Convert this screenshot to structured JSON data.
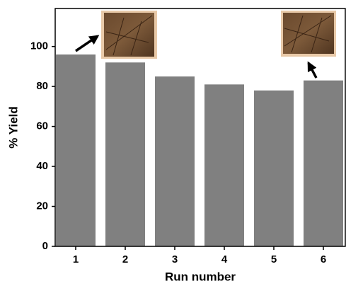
{
  "chart_data": {
    "type": "bar",
    "categories": [
      "1",
      "2",
      "3",
      "4",
      "5",
      "6"
    ],
    "values": [
      96,
      92,
      85,
      81,
      78,
      83
    ],
    "color": "#808080",
    "ylim": [
      0,
      119
    ],
    "yticks": [
      0,
      20,
      40,
      60,
      80,
      100
    ],
    "ylabel": "% Yield",
    "xlabel": "Run number",
    "grid": false
  }
}
